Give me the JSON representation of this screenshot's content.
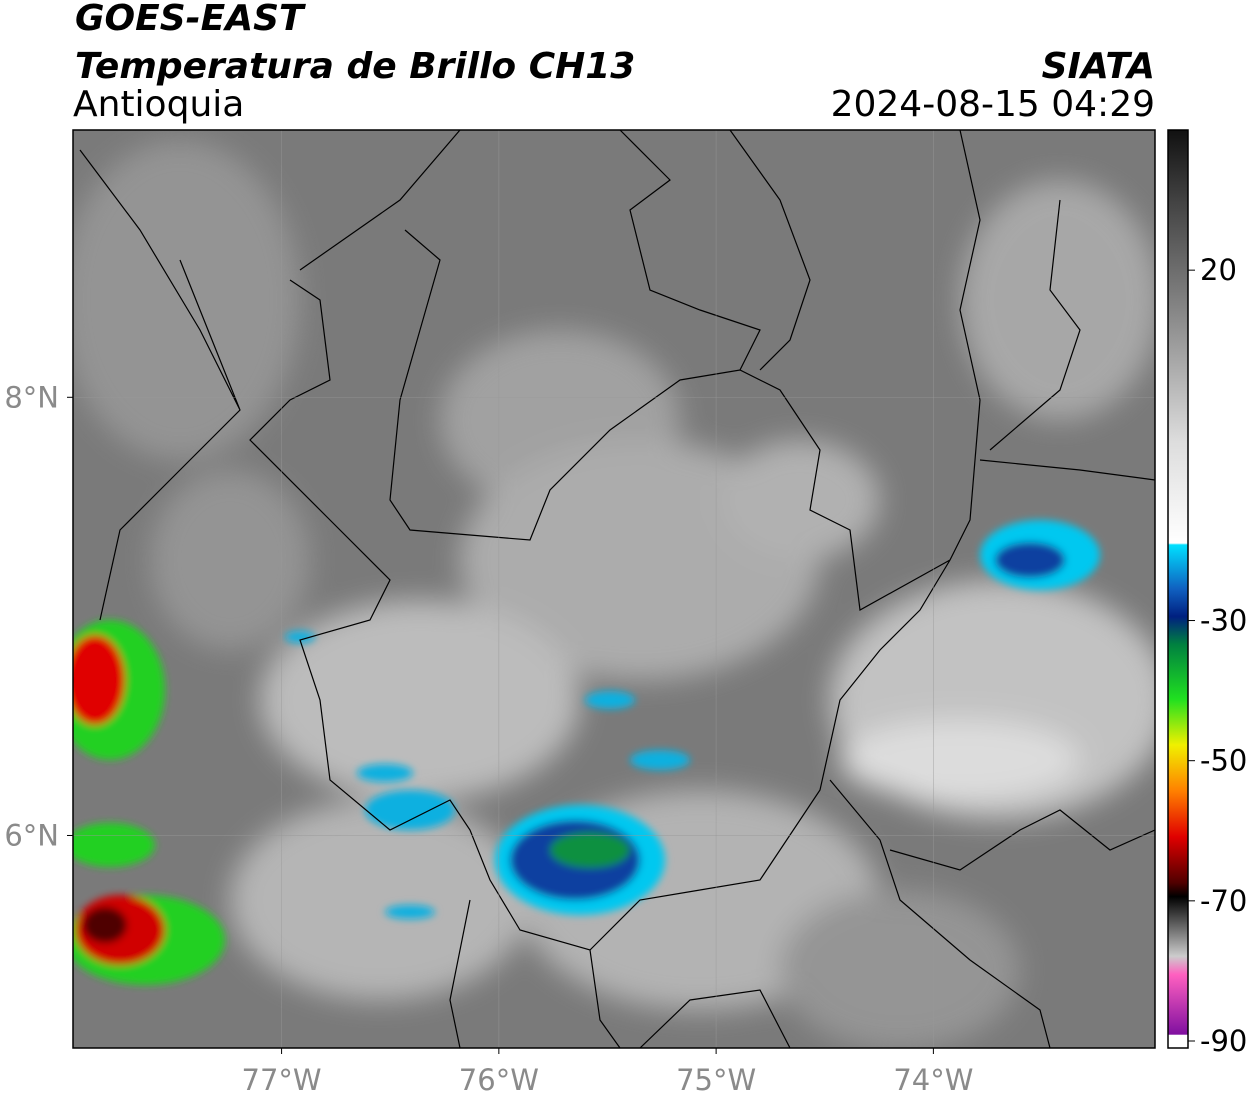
{
  "header": {
    "title": "GOES-EAST",
    "subtitle": "Temperatura de Brillo CH13",
    "region": "Antioquia",
    "source": "SIATA",
    "datetime": "2024-08-15 04:29"
  },
  "map": {
    "xlim": [
      -77.96,
      -72.98
    ],
    "ylim": [
      5.03,
      9.22
    ],
    "xticks": [
      {
        "value": -77,
        "label": "77°W"
      },
      {
        "value": -76,
        "label": "76°W"
      },
      {
        "value": -75,
        "label": "75°W"
      },
      {
        "value": -74,
        "label": "74°W"
      }
    ],
    "yticks": [
      {
        "value": 6,
        "label": "6°N"
      },
      {
        "value": 8,
        "label": "8°N"
      }
    ],
    "grid": true
  },
  "colorbar": {
    "lim": [
      -91,
      40
    ],
    "ticks": [
      20,
      -30,
      -50,
      -70,
      -90
    ]
  }
}
